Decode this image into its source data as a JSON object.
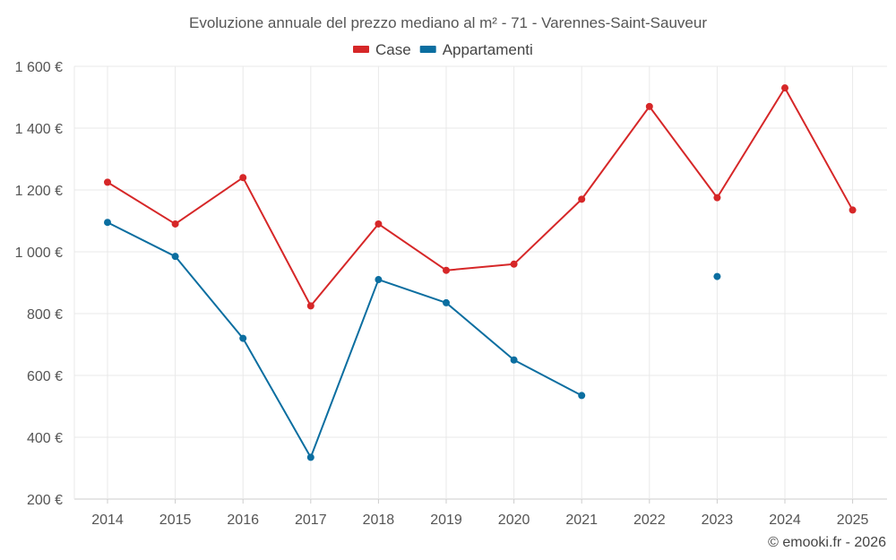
{
  "chart_data": {
    "type": "line",
    "title": "Evoluzione annuale del prezzo mediano al m² - 71 - Varennes-Saint-Sauveur",
    "categories": [
      "2014",
      "2015",
      "2016",
      "2017",
      "2018",
      "2019",
      "2020",
      "2021",
      "2022",
      "2023",
      "2024",
      "2025"
    ],
    "series": [
      {
        "name": "Case",
        "color": "#d62728",
        "values": [
          1225,
          1090,
          1240,
          825,
          1090,
          940,
          960,
          1170,
          1470,
          1175,
          1530,
          1135
        ]
      },
      {
        "name": "Appartamenti",
        "color": "#0b6ea0",
        "values": [
          1095,
          985,
          720,
          335,
          910,
          835,
          650,
          535,
          null,
          920,
          null,
          null
        ]
      }
    ],
    "ylim": [
      200,
      1600
    ],
    "yticks": [
      200,
      400,
      600,
      800,
      1000,
      1200,
      1400,
      1600
    ],
    "ytick_labels": [
      "200 €",
      "400 €",
      "600 €",
      "800 €",
      "1 000 €",
      "1 200 €",
      "1 400 €",
      "1 600 €"
    ],
    "xlabel": "",
    "ylabel": "",
    "grid": true,
    "legend_position": "top-center"
  },
  "credit": "© emooki.fr - 2026"
}
